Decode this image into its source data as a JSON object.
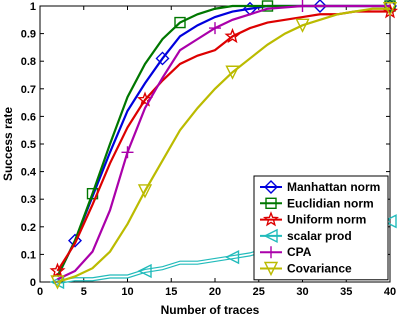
{
  "chart_data": {
    "type": "line",
    "title": "",
    "xlabel": "Number of traces",
    "ylabel": "Success rate",
    "xlim": [
      0,
      40
    ],
    "ylim": [
      0,
      1
    ],
    "xticks": [
      0,
      5,
      10,
      15,
      20,
      25,
      30,
      35,
      40
    ],
    "yticks": [
      0,
      0.1,
      0.2,
      0.3,
      0.4,
      0.5,
      0.6,
      0.7,
      0.8,
      0.9,
      1
    ],
    "xtick_labels": [
      "0",
      "5",
      "10",
      "15",
      "20",
      "25",
      "30",
      "35",
      "40"
    ],
    "ytick_labels": [
      "0",
      "0.1",
      "0.2",
      "0.3",
      "0.4",
      "0.5",
      "0.6",
      "0.7",
      "0.8",
      "0.9",
      "1"
    ],
    "grid": false,
    "legend_position": "lower-right",
    "series": [
      {
        "name": "Manhattan norm",
        "color": "#0000dd",
        "marker": "diamond",
        "x": [
          2,
          4,
          6,
          8,
          10,
          12,
          14,
          16,
          18,
          20,
          22,
          24,
          26,
          28,
          30,
          32,
          34,
          36,
          38,
          40
        ],
        "y": [
          0.02,
          0.15,
          0.31,
          0.47,
          0.62,
          0.72,
          0.81,
          0.89,
          0.93,
          0.96,
          0.98,
          0.99,
          1.0,
          1.0,
          1.0,
          1.0,
          1.0,
          1.0,
          1.0,
          1.0
        ],
        "marker_x": [
          4,
          14,
          24,
          32,
          40
        ]
      },
      {
        "name": "Euclidian norm",
        "color": "#007700",
        "marker": "square",
        "x": [
          2,
          4,
          6,
          8,
          10,
          12,
          14,
          16,
          18,
          20,
          22,
          24,
          26,
          28,
          30,
          32,
          34,
          36,
          38,
          40
        ],
        "y": [
          0.02,
          0.15,
          0.32,
          0.5,
          0.67,
          0.79,
          0.88,
          0.94,
          0.97,
          0.99,
          1.0,
          1.0,
          1.0,
          1.0,
          1.0,
          1.0,
          1.0,
          1.0,
          1.0,
          1.0
        ],
        "marker_x": [
          6,
          16,
          26,
          40
        ]
      },
      {
        "name": "Uniform norm",
        "color": "#dd0000",
        "marker": "star",
        "x": [
          2,
          4,
          6,
          8,
          10,
          12,
          14,
          16,
          18,
          20,
          22,
          24,
          26,
          28,
          30,
          32,
          34,
          36,
          38,
          40
        ],
        "y": [
          0.04,
          0.14,
          0.28,
          0.43,
          0.56,
          0.66,
          0.73,
          0.79,
          0.82,
          0.84,
          0.89,
          0.92,
          0.94,
          0.95,
          0.96,
          0.97,
          0.97,
          0.98,
          0.98,
          0.98
        ],
        "marker_x": [
          2,
          12,
          22,
          40
        ]
      },
      {
        "name": "scalar prod",
        "color": "#22bbbb",
        "marker": "triangle-left",
        "x": [
          2,
          4,
          6,
          8,
          10,
          12,
          14,
          16,
          18,
          20,
          22,
          24,
          26,
          28,
          30,
          32,
          34,
          36,
          38,
          40
        ],
        "y": [
          0.0,
          0.01,
          0.01,
          0.02,
          0.02,
          0.04,
          0.05,
          0.07,
          0.07,
          0.08,
          0.09,
          0.1,
          0.12,
          0.13,
          0.15,
          0.16,
          0.17,
          0.19,
          0.2,
          0.22
        ],
        "marker_x": [
          2,
          12,
          22,
          40
        ]
      },
      {
        "name": "CPA",
        "color": "#aa00aa",
        "marker": "plus",
        "x": [
          2,
          4,
          6,
          8,
          10,
          12,
          14,
          16,
          18,
          20,
          22,
          24,
          26,
          28,
          30,
          32,
          34,
          36,
          38,
          40
        ],
        "y": [
          0.01,
          0.04,
          0.11,
          0.26,
          0.47,
          0.63,
          0.74,
          0.84,
          0.88,
          0.92,
          0.95,
          0.97,
          0.99,
          0.995,
          1.0,
          1.0,
          1.0,
          1.0,
          1.0,
          1.0
        ],
        "marker_x": [
          10,
          20,
          30
        ]
      },
      {
        "name": "Covariance",
        "color": "#bbbb00",
        "marker": "triangle-down",
        "x": [
          2,
          4,
          6,
          8,
          10,
          12,
          14,
          16,
          18,
          20,
          22,
          24,
          26,
          28,
          30,
          32,
          34,
          36,
          38,
          40
        ],
        "y": [
          0.0,
          0.02,
          0.05,
          0.11,
          0.21,
          0.33,
          0.44,
          0.55,
          0.63,
          0.7,
          0.76,
          0.81,
          0.86,
          0.9,
          0.93,
          0.95,
          0.97,
          0.98,
          0.99,
          0.99
        ],
        "marker_x": [
          2,
          12,
          22,
          30,
          40
        ]
      }
    ]
  }
}
